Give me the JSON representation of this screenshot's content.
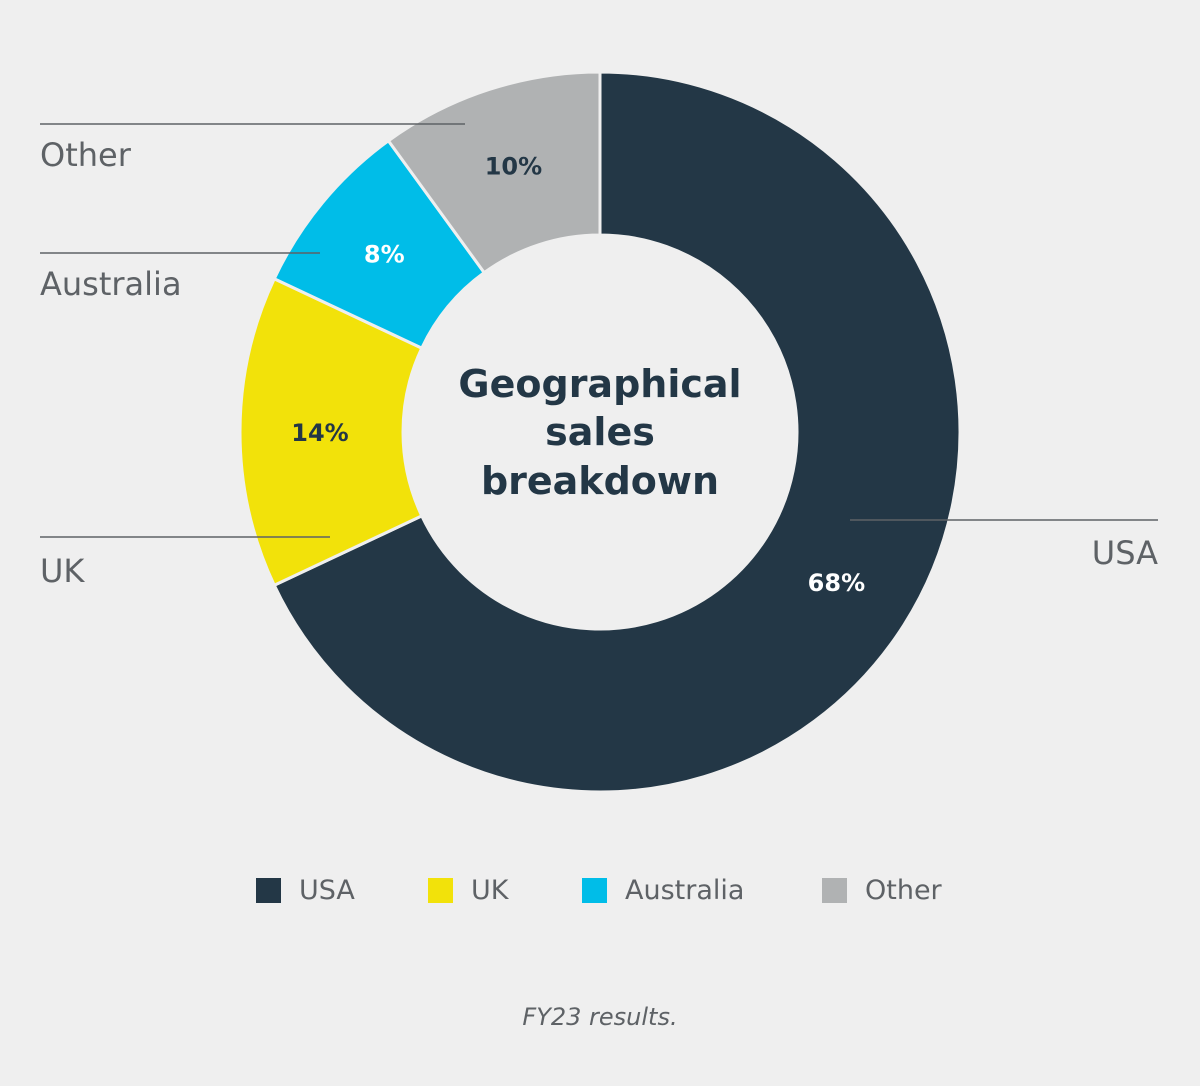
{
  "chart_data": {
    "type": "pie",
    "title": "Geographical sales breakdown",
    "title_lines": [
      "Geographical",
      "sales",
      "breakdown"
    ],
    "categories": [
      "USA",
      "UK",
      "Australia",
      "Other"
    ],
    "values": [
      68,
      14,
      8,
      10
    ],
    "value_labels": [
      "68%",
      "14%",
      "8%",
      "10%"
    ],
    "colors": [
      "#233746",
      "#f2e20a",
      "#00bde8",
      "#b0b2b3"
    ],
    "value_label_colors": [
      "#ffffff",
      "#233746",
      "#ffffff",
      "#233746"
    ],
    "donut": true,
    "legend_position": "bottom",
    "caption": "FY23 results."
  },
  "legend": [
    {
      "label": "USA",
      "color": "#233746"
    },
    {
      "label": "UK",
      "color": "#f2e20a"
    },
    {
      "label": "Australia",
      "color": "#00bde8"
    },
    {
      "label": "Other",
      "color": "#b0b2b3"
    }
  ],
  "side_labels": {
    "usa": "USA",
    "uk": "UK",
    "australia": "Australia",
    "other": "Other"
  },
  "caption": "FY23 results."
}
